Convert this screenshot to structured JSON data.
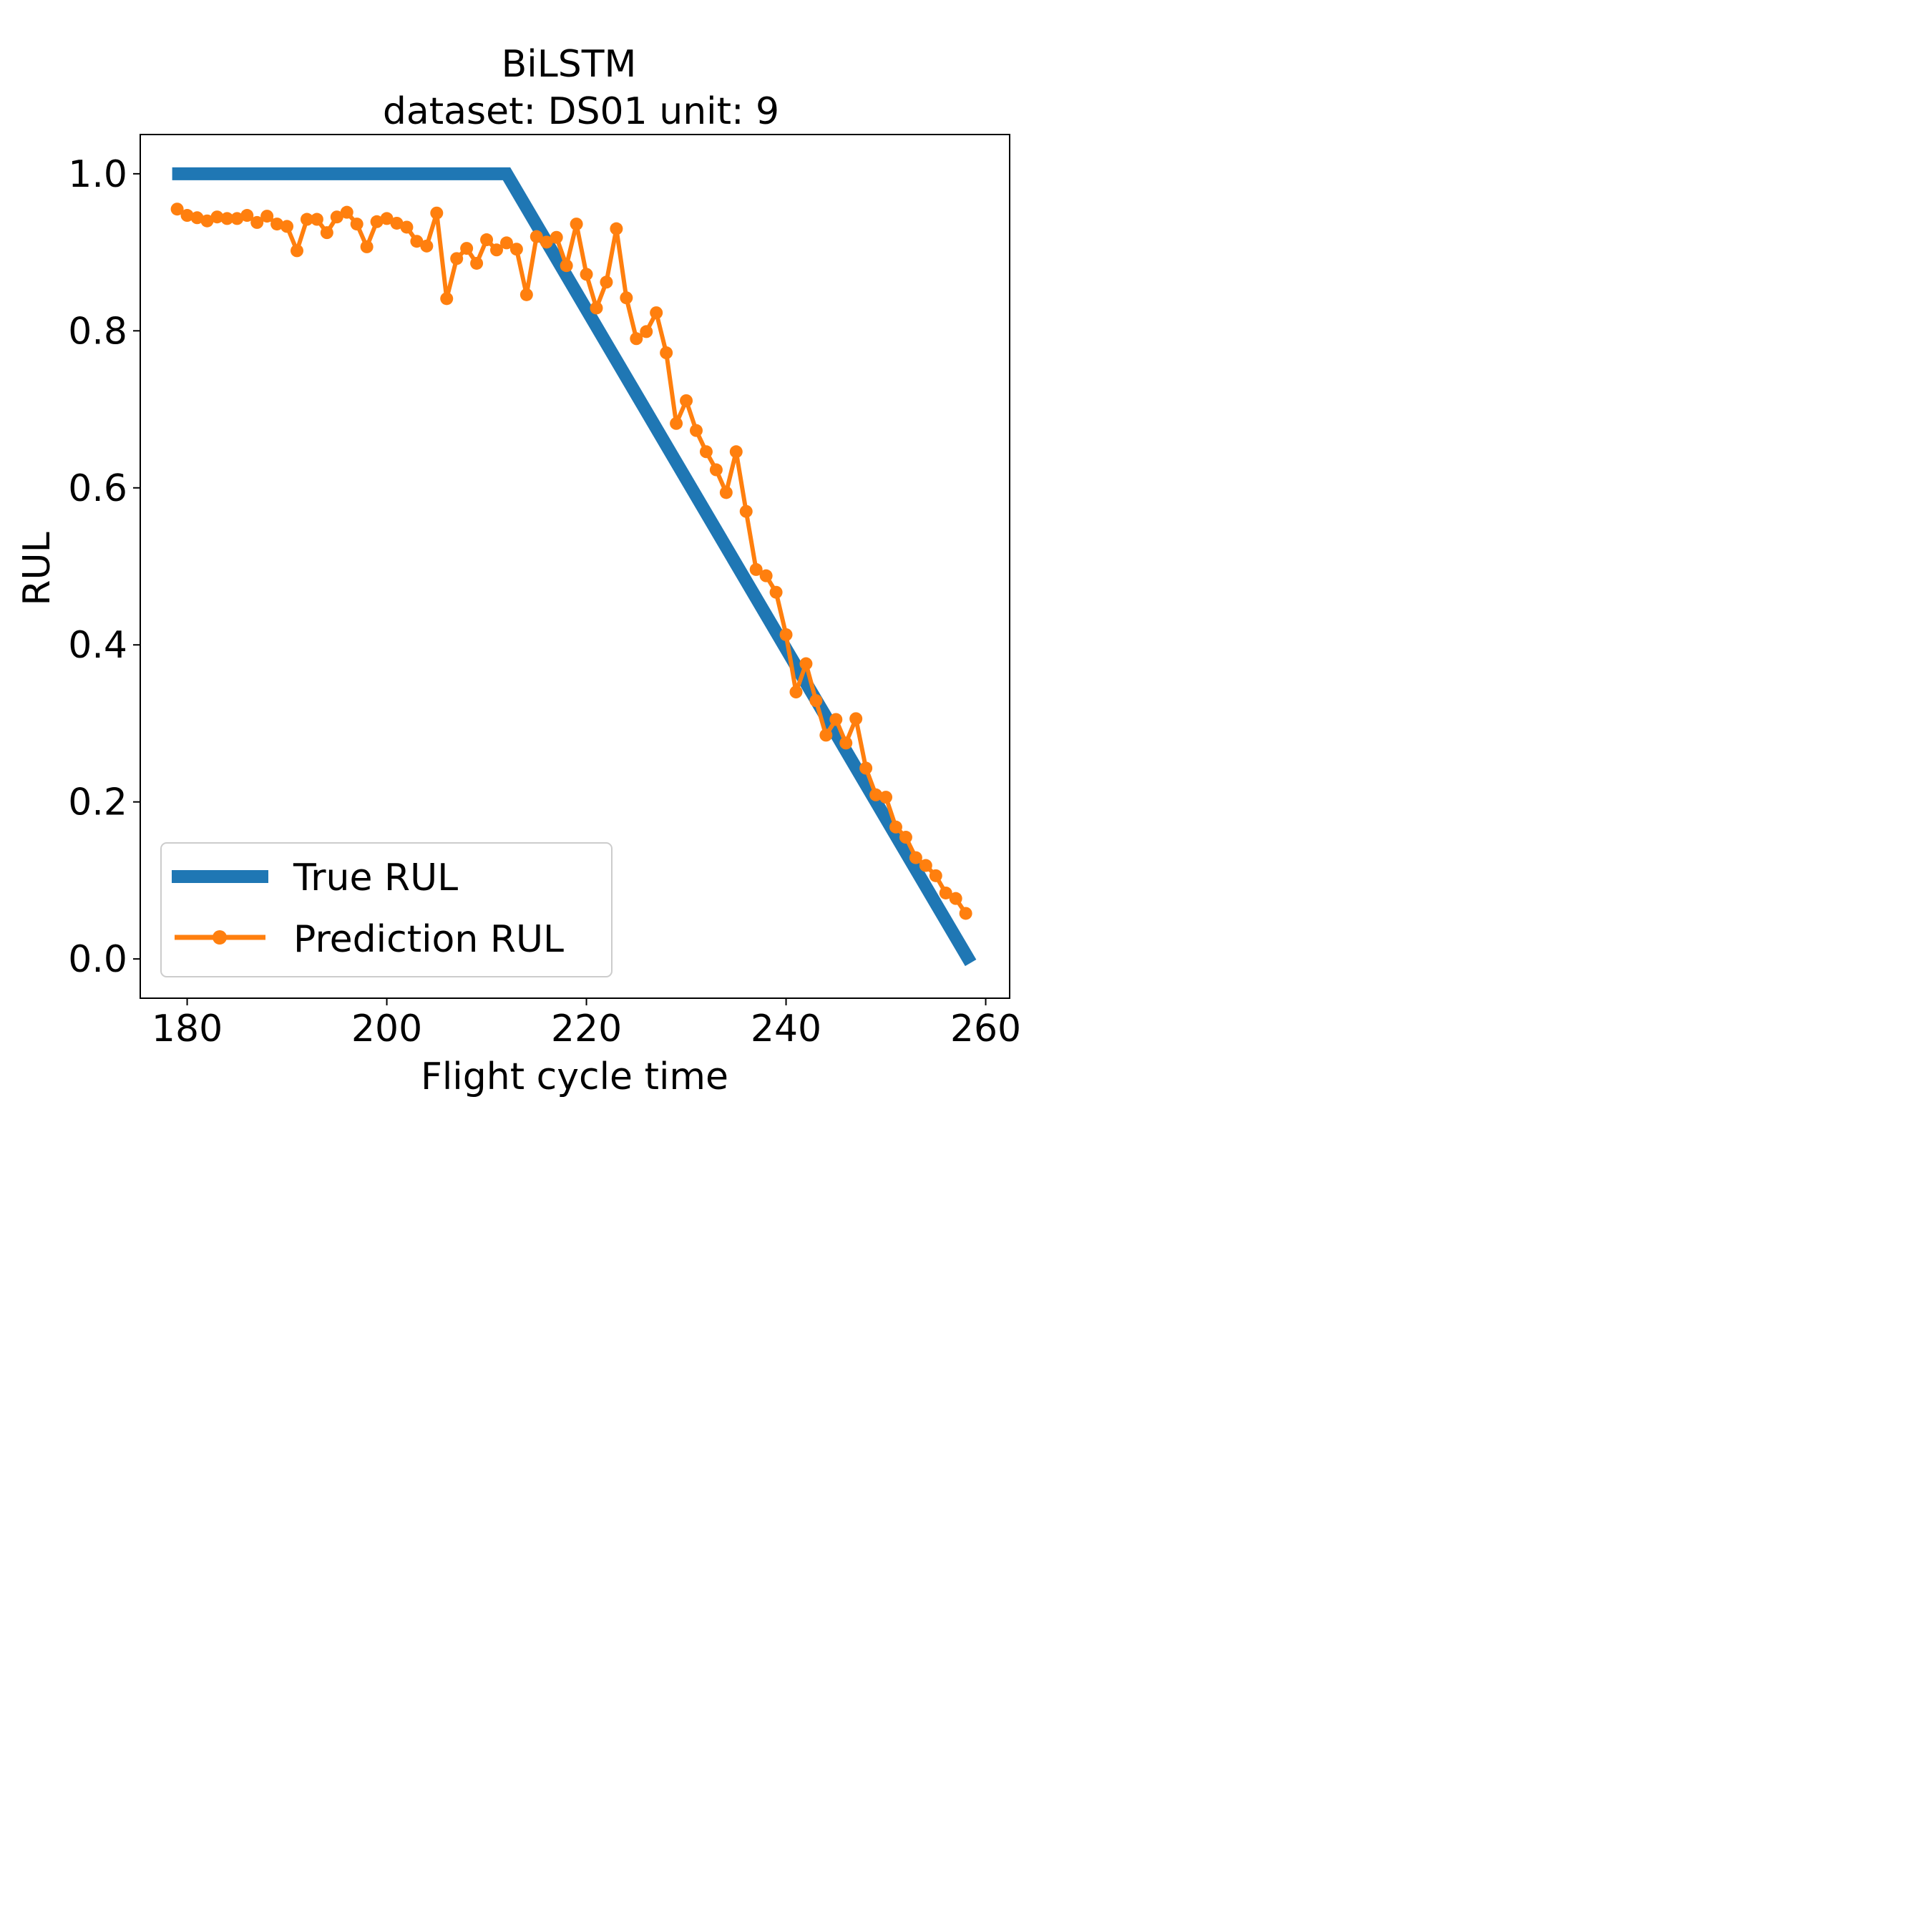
{
  "chart_data": {
    "type": "line",
    "title": "BiLSTM",
    "subtitle": "dataset: DS01 unit: 9",
    "xlabel": "Flight cycle time",
    "ylabel": "RUL",
    "xlim": [
      175.3,
      262.4
    ],
    "ylim": [
      -0.05,
      1.05
    ],
    "x_ticks": [
      180,
      200,
      220,
      240,
      260
    ],
    "y_ticks": [
      0.0,
      0.2,
      0.4,
      0.6,
      0.8,
      1.0
    ],
    "grid": false,
    "legend_position": "lower-left",
    "series": [
      {
        "name": "True RUL",
        "color": "#1f77b4",
        "marker": "none",
        "x": [
          178.5,
          212,
          258.5
        ],
        "y": [
          1.0,
          1.0,
          -0.005
        ]
      },
      {
        "name": "Prediction RUL",
        "color": "#ff7f0e",
        "marker": "circle",
        "x": [
          179,
          180,
          181,
          182,
          183,
          184,
          185,
          186,
          187,
          188,
          189,
          190,
          191,
          192,
          193,
          194,
          195,
          196,
          197,
          198,
          199,
          200,
          201,
          202,
          203,
          204,
          205,
          206,
          207,
          208,
          209,
          210,
          211,
          212,
          213,
          214,
          215,
          216,
          217,
          218,
          219,
          220,
          221,
          222,
          223,
          224,
          225,
          226,
          227,
          228,
          229,
          230,
          231,
          232,
          233,
          234,
          235,
          236,
          237,
          238,
          239,
          240,
          241,
          242,
          243,
          244,
          245,
          246,
          247,
          248,
          249,
          250,
          251,
          252,
          253,
          254,
          255,
          256,
          257,
          258
        ],
        "y": [
          0.955,
          0.947,
          0.944,
          0.94,
          0.945,
          0.943,
          0.943,
          0.947,
          0.938,
          0.946,
          0.936,
          0.933,
          0.902,
          0.942,
          0.942,
          0.925,
          0.945,
          0.951,
          0.936,
          0.907,
          0.939,
          0.943,
          0.937,
          0.932,
          0.914,
          0.908,
          0.95,
          0.841,
          0.892,
          0.905,
          0.886,
          0.916,
          0.903,
          0.912,
          0.904,
          0.846,
          0.92,
          0.913,
          0.919,
          0.883,
          0.936,
          0.872,
          0.829,
          0.862,
          0.93,
          0.842,
          0.79,
          0.799,
          0.823,
          0.772,
          0.682,
          0.711,
          0.673,
          0.646,
          0.623,
          0.594,
          0.646,
          0.57,
          0.496,
          0.488,
          0.467,
          0.413,
          0.34,
          0.376,
          0.329,
          0.285,
          0.305,
          0.275,
          0.306,
          0.243,
          0.209,
          0.206,
          0.168,
          0.155,
          0.129,
          0.119,
          0.106,
          0.084,
          0.077,
          0.058
        ]
      }
    ]
  }
}
